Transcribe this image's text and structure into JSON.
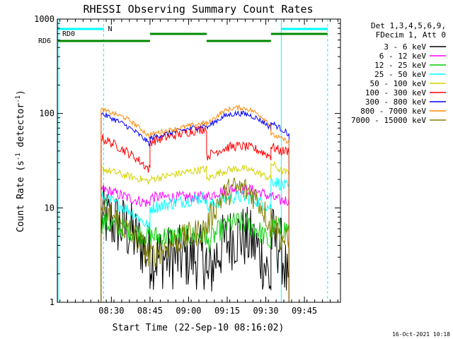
{
  "chart_data": {
    "type": "line",
    "title": "RHESSI Observing Summary Count Rates",
    "xlabel": "Start Time (22-Sep-10 08:16:02)",
    "ylabel_main": "Count Rate (s",
    "ylabel_sup1": "-1",
    "ylabel_mid": " detector",
    "ylabel_sup2": "-1",
    "ylabel_end": ")",
    "yscale": "log",
    "ylim": [
      1,
      1000
    ],
    "xlim_minutes": [
      -7,
      103
    ],
    "x_ticks": [
      {
        "label": "08:30",
        "minute": 14
      },
      {
        "label": "08:45",
        "minute": 29
      },
      {
        "label": "09:00",
        "minute": 44
      },
      {
        "label": "09:15",
        "minute": 59
      },
      {
        "label": "09:30",
        "minute": 74
      },
      {
        "label": "09:45",
        "minute": 89
      }
    ],
    "y_ticks": [
      {
        "label": "1",
        "value": 1
      },
      {
        "label": "10",
        "value": 10
      },
      {
        "label": "100",
        "value": 100
      },
      {
        "label": "1000",
        "value": 1000
      }
    ],
    "legend_header": [
      "Det 1,3,4,5,6,9,",
      "FDecim 1, Att 0"
    ],
    "series": [
      {
        "name": "3 - 6 keV",
        "color": "#000000",
        "seg1": [
          8,
          6,
          3
        ],
        "seg2": [
          3,
          3
        ],
        "seg3": [
          1.5,
          5,
          1.5
        ],
        "seg4": [
          5,
          4,
          1
        ],
        "noise": 0.35
      },
      {
        "name": "6 - 12 keV",
        "color": "#ff00ff",
        "seg1": [
          16,
          13,
          11
        ],
        "seg2": [
          13,
          13
        ],
        "seg3": [
          13,
          16,
          13
        ],
        "seg4": [
          13,
          12,
          12
        ],
        "noise": 0.06
      },
      {
        "name": "12 - 25 keV",
        "color": "#00cc00",
        "seg1": [
          7,
          6,
          5
        ],
        "seg2": [
          5,
          5
        ],
        "seg3": [
          4,
          7,
          5
        ],
        "seg4": [
          6,
          6,
          6
        ],
        "noise": 0.12
      },
      {
        "name": "25 - 50 keV",
        "color": "#00ffff",
        "seg1": [
          13,
          10,
          6
        ],
        "seg2": [
          10,
          13
        ],
        "seg3": [
          10,
          13,
          10
        ],
        "seg4": [
          20,
          18,
          16
        ],
        "noise": 0.07
      },
      {
        "name": "50 - 100 keV",
        "color": "#d4d400",
        "seg1": [
          26,
          22,
          19
        ],
        "seg2": [
          20,
          26
        ],
        "seg3": [
          20,
          26,
          20
        ],
        "seg4": [
          30,
          25,
          23
        ],
        "noise": 0.04
      },
      {
        "name": "100 - 300 keV",
        "color": "#ff0000",
        "seg1": [
          55,
          40,
          25
        ],
        "seg2": [
          50,
          70
        ],
        "seg3": [
          35,
          45,
          32
        ],
        "seg4": [
          45,
          40,
          40
        ],
        "noise": 0.05
      },
      {
        "name": "300 - 800 keV",
        "color": "#0000ff",
        "seg1": [
          100,
          75,
          47
        ],
        "seg2": [
          55,
          75
        ],
        "seg3": [
          70,
          100,
          70
        ],
        "seg4": [
          80,
          70,
          60
        ],
        "noise": 0.03
      },
      {
        "name": "800 - 7000 keV",
        "color": "#ff8800",
        "seg1": [
          110,
          90,
          56
        ],
        "seg2": [
          60,
          80
        ],
        "seg3": [
          75,
          115,
          75
        ],
        "seg4": [
          60,
          55,
          50
        ],
        "noise": 0.025
      },
      {
        "name": "7000 - 15000 keV",
        "color": "#808000",
        "seg1": [
          10,
          6,
          3
        ],
        "seg2": [
          3,
          6
        ],
        "seg3": [
          6,
          16,
          6
        ],
        "seg4": [
          8,
          5,
          4
        ],
        "noise": 0.15
      }
    ],
    "annotations": [
      {
        "label": "RD0",
        "color": "#00cc00"
      },
      {
        "label": "RD6",
        "color": "#008800"
      },
      {
        "label": "N",
        "color": "#00cccc"
      }
    ],
    "footer_date": "16-Oct-2021 10:18"
  }
}
